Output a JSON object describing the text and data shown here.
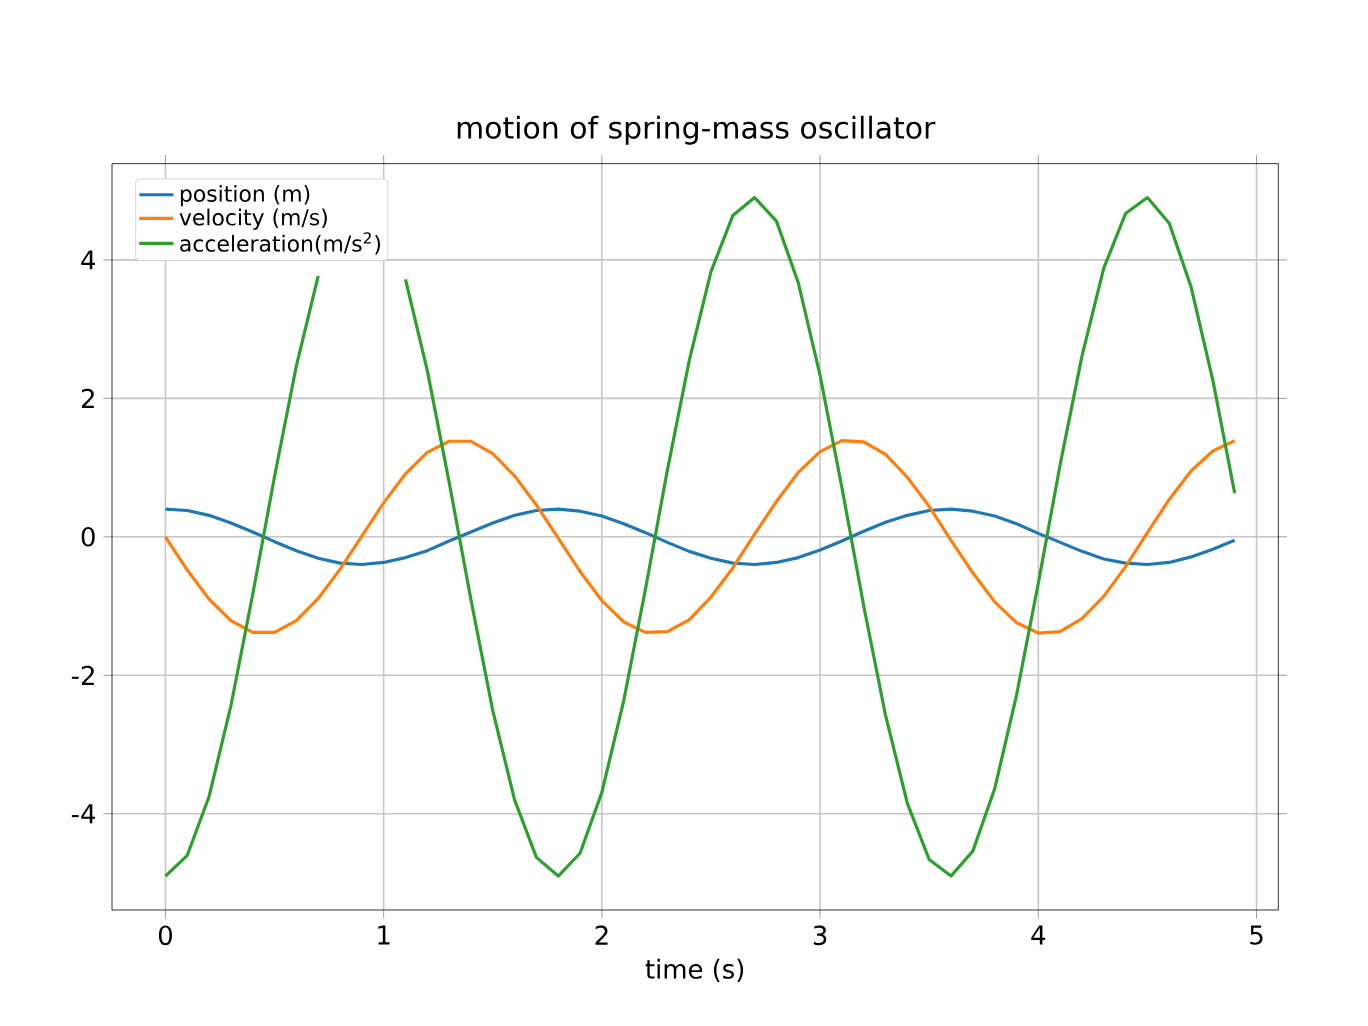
{
  "chart_data": {
    "type": "line",
    "title": "motion of spring-mass oscillator",
    "xlabel": "time (s)",
    "x": [
      0,
      0.1,
      0.2,
      0.3,
      0.4,
      0.5,
      0.6,
      0.7,
      0.8,
      0.9,
      1.0,
      1.1,
      1.2,
      1.3,
      1.4,
      1.5,
      1.6,
      1.7,
      1.8,
      1.9,
      2.0,
      2.1,
      2.2,
      2.3,
      2.4,
      2.5,
      2.6,
      2.7,
      2.8,
      2.9,
      3.0,
      3.1,
      3.2,
      3.3,
      3.4,
      3.5,
      3.6,
      3.7,
      3.8,
      3.9,
      4.0,
      4.1,
      4.2,
      4.3,
      4.4,
      4.5,
      4.6,
      4.7,
      4.8,
      4.9
    ],
    "series": [
      {
        "name": "position (m)",
        "color": "#1f77b4",
        "values": [
          0.4,
          0.38,
          0.31,
          0.2,
          0.07,
          -0.07,
          -0.2,
          -0.31,
          -0.38,
          -0.4,
          -0.37,
          -0.3,
          -0.2,
          -0.06,
          0.07,
          0.2,
          0.31,
          0.38,
          0.4,
          0.37,
          0.3,
          0.19,
          0.06,
          -0.08,
          -0.21,
          -0.31,
          -0.38,
          -0.4,
          -0.37,
          -0.3,
          -0.19,
          -0.06,
          0.08,
          0.21,
          0.31,
          0.38,
          0.4,
          0.37,
          0.3,
          0.19,
          0.05,
          -0.08,
          -0.21,
          -0.32,
          -0.38,
          -0.4,
          -0.37,
          -0.29,
          -0.18,
          -0.05
        ]
      },
      {
        "name": "velocity (m/s)",
        "color": "#ff7f0e",
        "values": [
          0,
          -0.48,
          -0.9,
          -1.21,
          -1.38,
          -1.38,
          -1.21,
          -0.89,
          -0.47,
          0.01,
          0.49,
          0.91,
          1.22,
          1.38,
          1.38,
          1.2,
          0.88,
          0.46,
          -0.02,
          -0.5,
          -0.92,
          -1.23,
          -1.38,
          -1.37,
          -1.2,
          -0.87,
          -0.45,
          0.04,
          0.51,
          0.93,
          1.23,
          1.39,
          1.37,
          1.19,
          0.86,
          0.44,
          -0.05,
          -0.52,
          -0.94,
          -1.24,
          -1.39,
          -1.37,
          -1.18,
          -0.86,
          -0.43,
          0.06,
          0.54,
          0.95,
          1.24,
          1.39
        ]
      },
      {
        "name": "acceleration(m/s$^{2}$)",
        "color": "#2ca02c",
        "values": [
          -4.9,
          -4.6,
          -3.75,
          -2.44,
          -0.83,
          0.87,
          2.47,
          3.77,
          null,
          null,
          null,
          3.72,
          2.4,
          0.79,
          -0.91,
          -2.51,
          -3.8,
          -4.63,
          -4.9,
          -4.57,
          -3.69,
          -2.37,
          -0.75,
          0.96,
          2.54,
          3.83,
          4.64,
          4.9,
          4.56,
          3.67,
          2.33,
          0.71,
          -1.0,
          -2.58,
          -3.85,
          -4.66,
          -4.9,
          -4.54,
          -3.64,
          -2.29,
          -0.67,
          1.04,
          2.61,
          3.88,
          4.67,
          4.9,
          4.53,
          3.61,
          2.26,
          0.63
        ]
      }
    ],
    "xlim": [
      -0.245,
      5.1
    ],
    "ylim": [
      -5.39,
      5.39
    ],
    "xticks": [
      0,
      1,
      2,
      3,
      4,
      5
    ],
    "yticks": [
      -4,
      -2,
      0,
      2,
      4
    ],
    "grid": true,
    "legend": "top left",
    "marker": "none",
    "line_style": "solid"
  }
}
